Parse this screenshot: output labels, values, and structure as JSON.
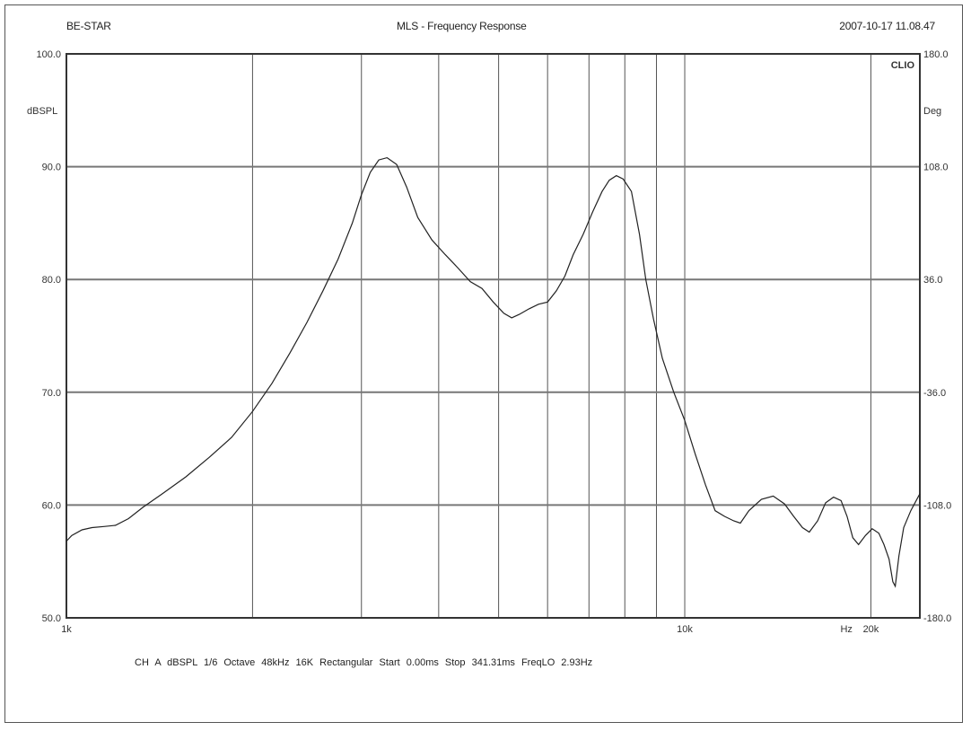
{
  "header": {
    "left": "BE-STAR",
    "center": "MLS - Frequency Response",
    "right": "2007-10-17 11.08.47"
  },
  "footer": "CH A  dBSPL  1/6 Octave  48kHz  16K  Rectangular  Start 0.00ms  Stop 341.31ms  FreqLO 2.93Hz",
  "colors": {
    "grid": "#555555",
    "curve": "#222222",
    "major_grid": "#777777"
  },
  "chart_data": {
    "type": "line",
    "title": "MLS - Frequency Response",
    "brand": "CLIO",
    "xscale": "log",
    "xlim": [
      1000,
      24000
    ],
    "ylim": [
      50,
      100
    ],
    "ylabel": "dBSPL",
    "y2label": "Deg",
    "y2lim": [
      -180,
      180
    ],
    "yticks": [
      {
        "value": 50,
        "label": "50.0"
      },
      {
        "value": 60,
        "label": "60.0"
      },
      {
        "value": 70,
        "label": "70.0"
      },
      {
        "value": 80,
        "label": "80.0"
      },
      {
        "value": 90,
        "label": "90.0"
      },
      {
        "value": 100,
        "label": "100.0"
      }
    ],
    "y2ticks": [
      {
        "value": -180,
        "label": "-180.0"
      },
      {
        "value": -108,
        "label": "-108.0"
      },
      {
        "value": -36,
        "label": "-36.0"
      },
      {
        "value": 36,
        "label": "36.0"
      },
      {
        "value": 108,
        "label": "108.0"
      },
      {
        "value": 180,
        "label": "180.0"
      }
    ],
    "xticks": [
      {
        "value": 1000,
        "label": "1k"
      },
      {
        "value": 10000,
        "label": "10k"
      },
      {
        "value": 20000,
        "label": "20k"
      }
    ],
    "xunit": "Hz",
    "xgrid": [
      2000,
      3000,
      4000,
      5000,
      6000,
      7000,
      8000,
      9000,
      10000,
      20000
    ],
    "series": [
      {
        "values": [
          [
            1000,
            56.8
          ],
          [
            1020,
            57.3
          ],
          [
            1060,
            57.8
          ],
          [
            1100,
            58.0
          ],
          [
            1150,
            58.1
          ],
          [
            1200,
            58.2
          ],
          [
            1260,
            58.8
          ],
          [
            1330,
            59.8
          ],
          [
            1430,
            61.0
          ],
          [
            1560,
            62.5
          ],
          [
            1700,
            64.2
          ],
          [
            1850,
            66.0
          ],
          [
            2000,
            68.3
          ],
          [
            2150,
            70.8
          ],
          [
            2300,
            73.5
          ],
          [
            2450,
            76.2
          ],
          [
            2600,
            79.0
          ],
          [
            2750,
            81.8
          ],
          [
            2900,
            85.0
          ],
          [
            3000,
            87.5
          ],
          [
            3100,
            89.5
          ],
          [
            3200,
            90.6
          ],
          [
            3300,
            90.8
          ],
          [
            3420,
            90.2
          ],
          [
            3550,
            88.2
          ],
          [
            3700,
            85.5
          ],
          [
            3900,
            83.5
          ],
          [
            4100,
            82.2
          ],
          [
            4300,
            81.0
          ],
          [
            4500,
            79.8
          ],
          [
            4700,
            79.2
          ],
          [
            4900,
            78.0
          ],
          [
            5100,
            77.0
          ],
          [
            5250,
            76.6
          ],
          [
            5400,
            76.9
          ],
          [
            5600,
            77.4
          ],
          [
            5800,
            77.8
          ],
          [
            6000,
            78.0
          ],
          [
            6200,
            79.0
          ],
          [
            6400,
            80.3
          ],
          [
            6600,
            82.2
          ],
          [
            6850,
            84.0
          ],
          [
            7100,
            86.0
          ],
          [
            7350,
            87.8
          ],
          [
            7550,
            88.8
          ],
          [
            7750,
            89.2
          ],
          [
            7950,
            88.9
          ],
          [
            8200,
            87.8
          ],
          [
            8450,
            84.0
          ],
          [
            8650,
            80.0
          ],
          [
            8900,
            76.5
          ],
          [
            9200,
            73.0
          ],
          [
            9600,
            70.0
          ],
          [
            10000,
            67.5
          ],
          [
            10400,
            64.5
          ],
          [
            10800,
            61.8
          ],
          [
            11200,
            59.5
          ],
          [
            11600,
            59.0
          ],
          [
            12000,
            58.6
          ],
          [
            12300,
            58.4
          ],
          [
            12700,
            59.5
          ],
          [
            13300,
            60.5
          ],
          [
            13900,
            60.8
          ],
          [
            14500,
            60.1
          ],
          [
            15000,
            59.0
          ],
          [
            15500,
            58.0
          ],
          [
            15900,
            57.6
          ],
          [
            16400,
            58.6
          ],
          [
            16900,
            60.2
          ],
          [
            17400,
            60.7
          ],
          [
            17900,
            60.4
          ],
          [
            18300,
            59.0
          ],
          [
            18700,
            57.1
          ],
          [
            19100,
            56.5
          ],
          [
            19600,
            57.3
          ],
          [
            20100,
            57.9
          ],
          [
            20600,
            57.5
          ],
          [
            21000,
            56.5
          ],
          [
            21400,
            55.2
          ],
          [
            21700,
            53.2
          ],
          [
            21900,
            52.8
          ],
          [
            22200,
            55.5
          ],
          [
            22600,
            58.0
          ],
          [
            23200,
            59.5
          ],
          [
            24000,
            61.0
          ]
        ]
      }
    ]
  }
}
